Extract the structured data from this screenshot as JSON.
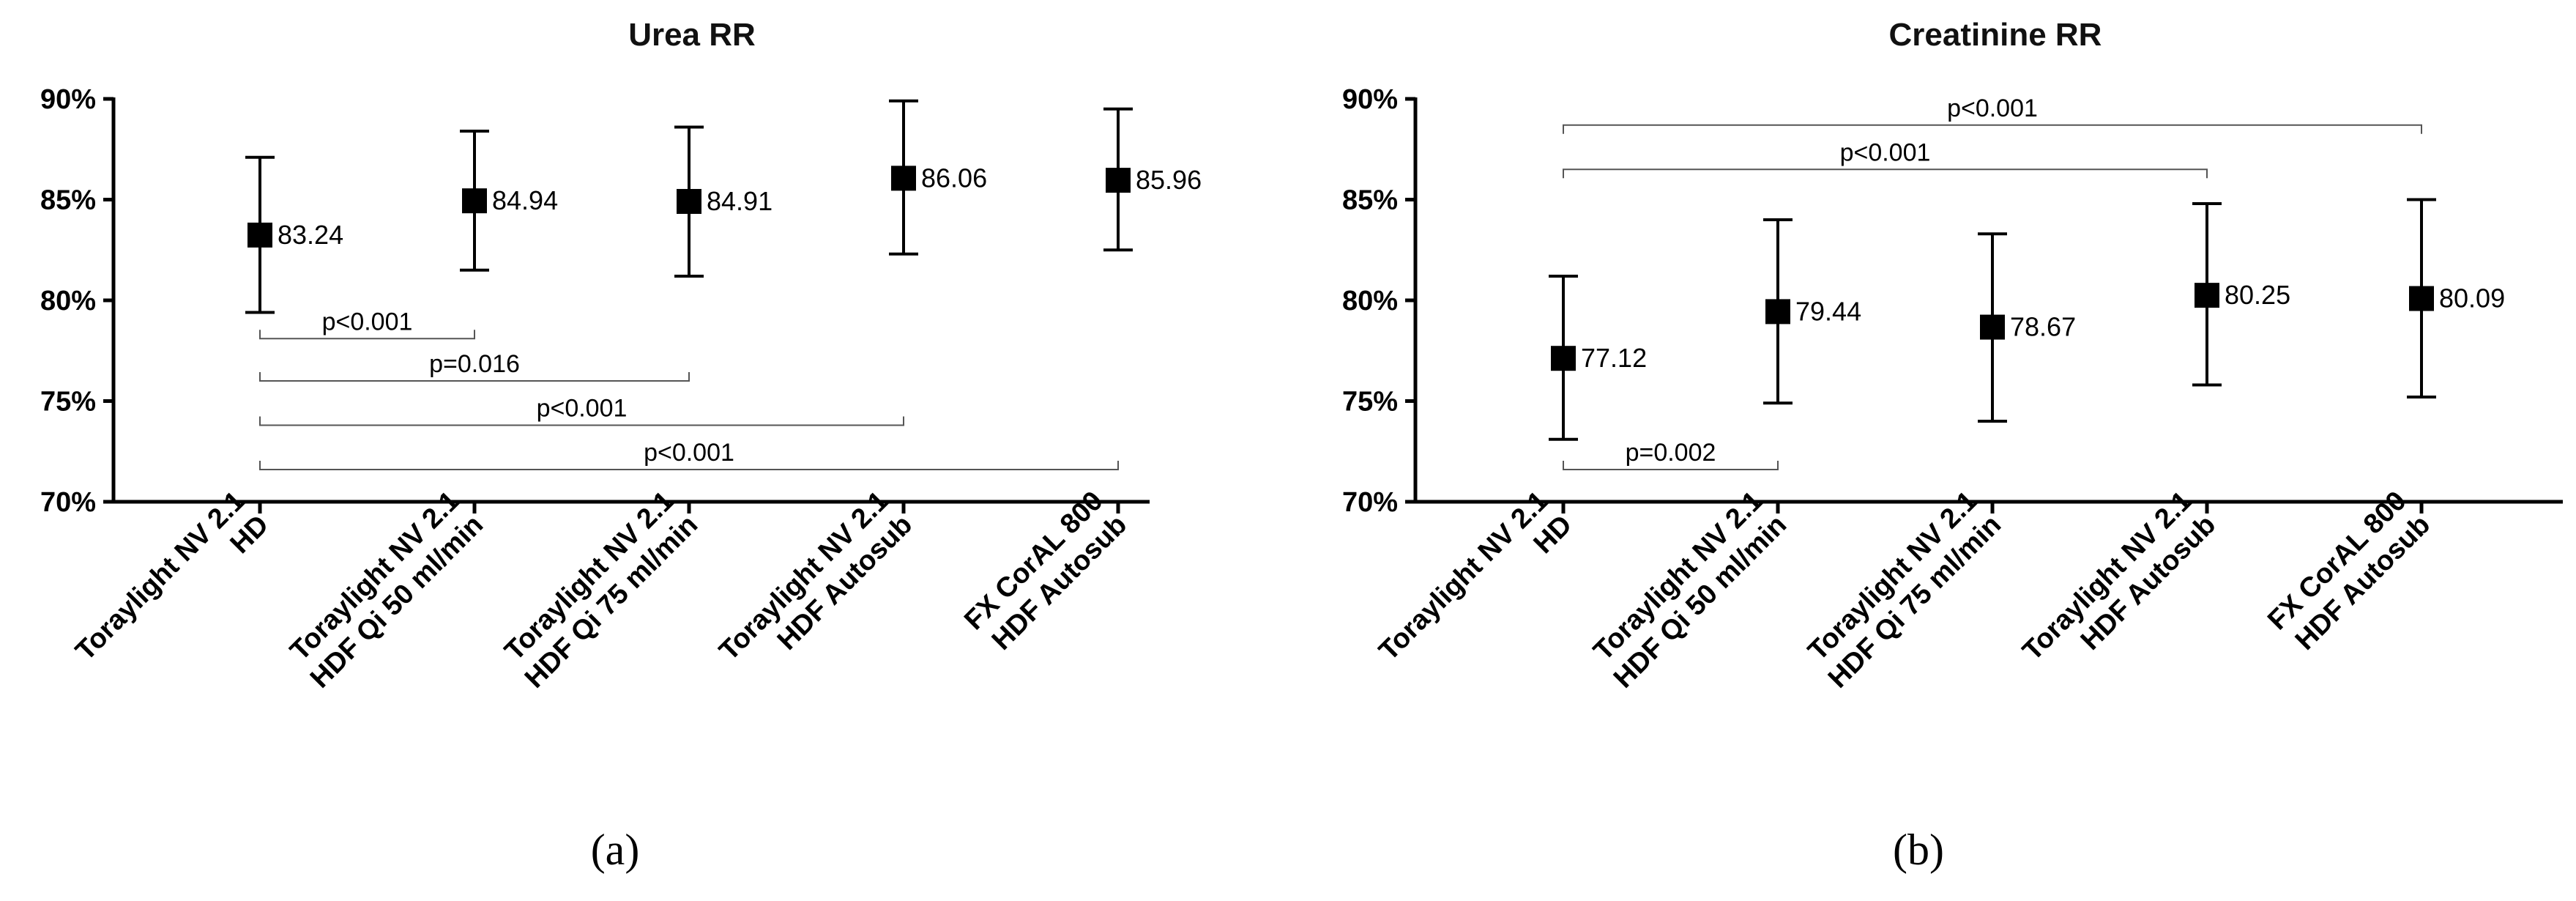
{
  "chart_data": [
    {
      "type": "scatter",
      "title": "Urea RR",
      "caption": "(a)",
      "ylim": [
        70,
        90
      ],
      "yticks": [
        "70%",
        "75%",
        "80%",
        "85%",
        "90%"
      ],
      "categories": [
        [
          "Toraylight NV 2.1",
          "HD"
        ],
        [
          "Toraylight NV 2.1",
          "HDF Qi 50 ml/min"
        ],
        [
          "Toraylight NV 2.1",
          "HDF Qi 75 ml/min"
        ],
        [
          "Toraylight NV 2.1",
          "HDF Autosub"
        ],
        [
          "FX CorAL 800",
          "HDF Autosub"
        ]
      ],
      "series": [
        {
          "values": [
            83.24,
            84.94,
            84.91,
            86.06,
            85.96
          ],
          "labels": [
            "83.24",
            "84.94",
            "84.91",
            "86.06",
            "85.96"
          ],
          "error_low": [
            79.4,
            81.5,
            81.2,
            82.3,
            82.5
          ],
          "error_high": [
            87.1,
            88.4,
            88.6,
            89.9,
            89.5
          ]
        }
      ],
      "comparisons": [
        {
          "from": 0,
          "to": 1,
          "label": "p<0.001",
          "level": 78.1
        },
        {
          "from": 0,
          "to": 2,
          "label": "p=0.016",
          "level": 76.0
        },
        {
          "from": 0,
          "to": 3,
          "label": "p<0.001",
          "level": 73.8
        },
        {
          "from": 0,
          "to": 4,
          "label": "p<0.001",
          "level": 71.6
        }
      ]
    },
    {
      "type": "scatter",
      "title": "Creatinine RR",
      "caption": "(b)",
      "ylim": [
        70,
        90
      ],
      "yticks": [
        "70%",
        "75%",
        "80%",
        "85%",
        "90%"
      ],
      "categories": [
        [
          "Toraylight NV 2.1",
          "HD"
        ],
        [
          "Toraylight NV 2.1",
          "HDF Qi 50 ml/min"
        ],
        [
          "Toraylight NV 2.1",
          "HDF Qi 75 ml/min"
        ],
        [
          "Toraylight NV 2.1",
          "HDF Autosub"
        ],
        [
          "FX CorAL 800",
          "HDF Autosub"
        ]
      ],
      "series": [
        {
          "values": [
            77.12,
            79.44,
            78.67,
            80.25,
            80.09
          ],
          "labels": [
            "77.12",
            "79.44",
            "78.67",
            "80.25",
            "80.09"
          ],
          "error_low": [
            73.1,
            74.9,
            74.0,
            75.8,
            75.2
          ],
          "error_high": [
            81.2,
            84.0,
            83.3,
            84.8,
            85.0
          ]
        }
      ],
      "comparisons": [
        {
          "from": 0,
          "to": 1,
          "label": "p=0.002",
          "level": 71.6
        },
        {
          "from": 0,
          "to": 3,
          "label": "p<0.001",
          "level": 86.5
        },
        {
          "from": 0,
          "to": 4,
          "label": "p<0.001",
          "level": 88.7
        }
      ]
    }
  ]
}
